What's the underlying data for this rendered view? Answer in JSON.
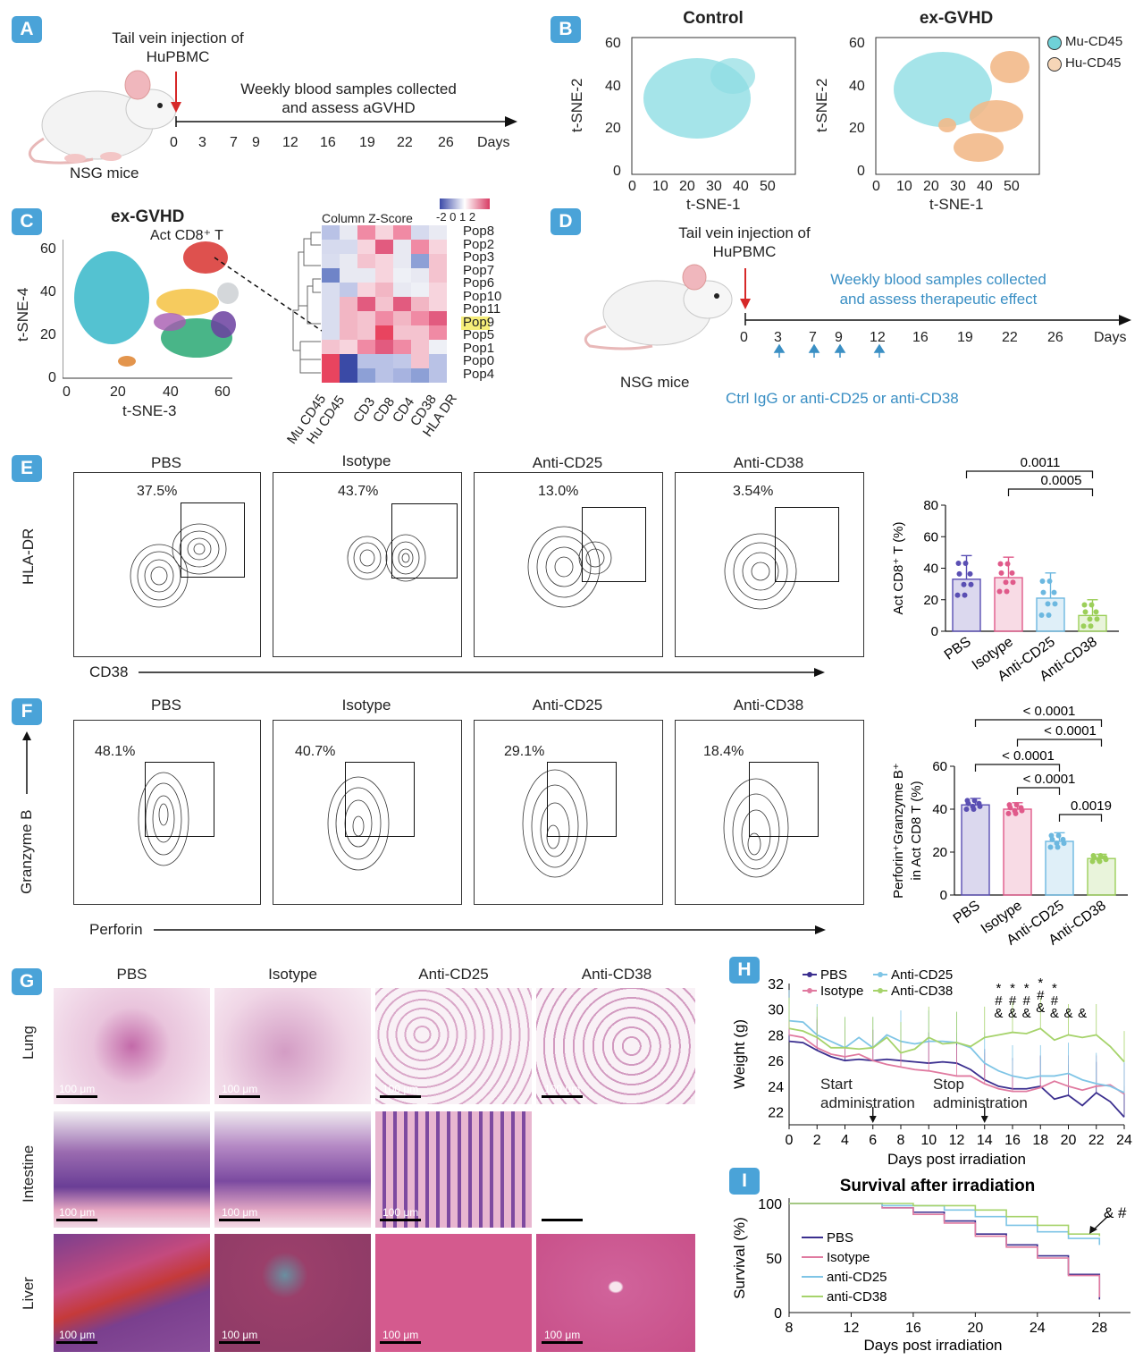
{
  "panels": {
    "a": {
      "label": "A",
      "injection": [
        "Tail vein injection of",
        "HuPBMC"
      ],
      "weekly": [
        "Weekly blood samples collected",
        "and assess aGVHD"
      ],
      "timeline_ticks": [
        "0",
        "3",
        "7",
        "9",
        "12",
        "16",
        "19",
        "22",
        "26"
      ],
      "days_label": "Days",
      "mouse_label": "NSG mice"
    },
    "b": {
      "label": "B",
      "titles": [
        "Control",
        "ex-GVHD"
      ],
      "xlabel": "t-SNE-1",
      "ylabel": "t-SNE-2",
      "xticks": [
        "0",
        "10",
        "20",
        "30",
        "40",
        "50"
      ],
      "yticks": [
        "0",
        "20",
        "40",
        "60"
      ],
      "legend": [
        {
          "name": "Mu-CD45",
          "color": "#6fd1d8"
        },
        {
          "name": "Hu-CD45",
          "color": "#f6d6b7"
        }
      ]
    },
    "c": {
      "label": "C",
      "title": "ex-GVHD",
      "annotation": "Act CD8⁺ T",
      "xlabel": "t-SNE-3",
      "ylabel": "t-SNE-4",
      "xticks": [
        "0",
        "20",
        "40",
        "60"
      ],
      "yticks": [
        "0",
        "20",
        "40",
        "60"
      ],
      "zscore_label": "Column Z-Score",
      "zscore_ticks": "-2  0 1 2",
      "rows": [
        "Pop8",
        "Pop2",
        "Pop3",
        "Pop7",
        "Pop6",
        "Pop10",
        "Pop11",
        "Pop9",
        "Pop5",
        "Pop1",
        "Pop0",
        "Pop4"
      ],
      "cols": [
        "Mu CD45",
        "Hu CD45",
        "CD3",
        "CD8",
        "CD4",
        "CD38",
        "HLA DR"
      ]
    },
    "d": {
      "label": "D",
      "injection": [
        "Tail vein injection of",
        "HuPBMC"
      ],
      "weekly": [
        "Weekly blood samples collected",
        "and assess therapeutic effect"
      ],
      "timeline_ticks": [
        "0",
        "3",
        "7",
        "9",
        "12",
        "16",
        "19",
        "22",
        "26"
      ],
      "days_label": "Days",
      "mouse_label": "NSG mice",
      "treatment": "Ctrl IgG or anti-CD25 or anti-CD38"
    },
    "e": {
      "label": "E",
      "groups": [
        "PBS",
        "Isotype",
        "Anti-CD25",
        "Anti-CD38"
      ],
      "percents": [
        "37.5%",
        "43.7%",
        "13.0%",
        "3.54%"
      ],
      "y_axis": "HLA-DR",
      "x_axis": "CD38",
      "bar_ylabel": "Act CD8⁺ T (%)",
      "p_values": [
        "0.0011",
        "0.0005"
      ]
    },
    "f": {
      "label": "F",
      "groups": [
        "PBS",
        "Isotype",
        "Anti-CD25",
        "Anti-CD38"
      ],
      "percents": [
        "48.1%",
        "40.7%",
        "29.1%",
        "18.4%"
      ],
      "y_axis": "Granzyme B",
      "x_axis": "Perforin",
      "bar_ylabel": [
        "Perforin⁺Granzyme B⁺",
        "in Act CD8 T (%)"
      ],
      "p_values": [
        "< 0.0001",
        "< 0.0001",
        "< 0.0001",
        "< 0.0001",
        "0.0019"
      ]
    },
    "g": {
      "label": "G",
      "columns": [
        "PBS",
        "Isotype",
        "Anti-CD25",
        "Anti-CD38"
      ],
      "rows": [
        "Lung",
        "Intestine",
        "Liver"
      ],
      "scalebar": "100 μm"
    },
    "h": {
      "label": "H",
      "legend": [
        "PBS",
        "Isotype",
        "Anti-CD25",
        "Anti-CD38"
      ],
      "xlabel": "Days post irradiation",
      "ylabel": "Weight (g)",
      "start": [
        "Start",
        "administration"
      ],
      "stop": [
        "Stop",
        "administration"
      ],
      "sig_marks": [
        "*",
        "#",
        "&"
      ]
    },
    "i": {
      "label": "I",
      "title": "Survival after irradiation",
      "legend": [
        "PBS",
        "Isotype",
        "anti-CD25",
        "anti-CD38"
      ],
      "xlabel": "Days post irradiation",
      "ylabel": "Survival (%)",
      "marker": "& #"
    }
  },
  "chart_data": [
    {
      "id": "E-bar",
      "type": "bar",
      "categories": [
        "PBS",
        "Isotype",
        "Anti-CD25",
        "Anti-CD38"
      ],
      "values": [
        33,
        34,
        21,
        10
      ],
      "errors": [
        15,
        13,
        16,
        10
      ],
      "colors": [
        "#5a4fb3",
        "#e05a8a",
        "#6cb8e0",
        "#9ccf5a"
      ],
      "ylabel": "Act CD8⁺ T (%)",
      "ylim": [
        0,
        80
      ],
      "yticks": [
        0,
        20,
        40,
        60,
        80
      ],
      "brackets": [
        {
          "from": "PBS",
          "to": "Anti-CD38",
          "label": "0.0011"
        },
        {
          "from": "Isotype",
          "to": "Anti-CD38",
          "label": "0.0005"
        }
      ]
    },
    {
      "id": "F-bar",
      "type": "bar",
      "categories": [
        "PBS",
        "Isotype",
        "Anti-CD25",
        "Anti-CD38"
      ],
      "values": [
        42,
        40,
        25,
        17
      ],
      "errors": [
        3,
        3,
        4,
        2
      ],
      "colors": [
        "#5a4fb3",
        "#e05a8a",
        "#6cb8e0",
        "#9ccf5a"
      ],
      "ylabel": "Perforin⁺Granzyme B⁺ in Act CD8 T (%)",
      "ylim": [
        0,
        60
      ],
      "yticks": [
        0,
        20,
        40,
        60
      ],
      "brackets": [
        {
          "from": "PBS",
          "to": "Anti-CD38",
          "label": "< 0.0001"
        },
        {
          "from": "Isotype",
          "to": "Anti-CD38",
          "label": "< 0.0001"
        },
        {
          "from": "PBS",
          "to": "Anti-CD25",
          "label": "< 0.0001"
        },
        {
          "from": "Isotype",
          "to": "Anti-CD25",
          "label": "< 0.0001"
        },
        {
          "from": "Anti-CD25",
          "to": "Anti-CD38",
          "label": "0.0019"
        }
      ]
    },
    {
      "id": "H-line",
      "type": "line",
      "title": "",
      "xlabel": "Days post irradiation",
      "ylabel": "Weight (g)",
      "x": [
        0,
        1,
        2,
        3,
        4,
        5,
        6,
        7,
        8,
        9,
        10,
        11,
        12,
        13,
        14,
        15,
        16,
        17,
        18,
        19,
        20,
        21,
        22,
        23,
        24
      ],
      "xlim": [
        0,
        24
      ],
      "ylim": [
        21,
        32
      ],
      "xticks": [
        0,
        2,
        4,
        6,
        8,
        10,
        12,
        14,
        16,
        18,
        20,
        22,
        24
      ],
      "yticks": [
        22,
        24,
        26,
        28,
        30,
        32
      ],
      "series": [
        {
          "name": "PBS",
          "color": "#3b2f8f",
          "values": [
            27.5,
            27.4,
            26.8,
            26.3,
            26.0,
            26.1,
            26.0,
            26.1,
            26.0,
            25.9,
            25.8,
            25.9,
            25.8,
            25.3,
            24.5,
            24.0,
            23.8,
            23.8,
            24.0,
            23.0,
            23.3,
            22.5,
            23.5,
            22.8,
            21.6
          ]
        },
        {
          "name": "Isotype",
          "color": "#e07aa0",
          "values": [
            28.0,
            27.8,
            27.0,
            26.5,
            26.3,
            26.5,
            26.0,
            25.7,
            25.5,
            25.3,
            25.2,
            25.0,
            24.8,
            24.8,
            24.2,
            23.8,
            23.6,
            23.6,
            23.9,
            24.4,
            24.0,
            23.7,
            24.0,
            24.1,
            23.4
          ]
        },
        {
          "name": "Anti-CD25",
          "color": "#7fc5e6",
          "values": [
            29.1,
            29.0,
            28.0,
            27.5,
            27.0,
            27.8,
            27.0,
            28.0,
            27.5,
            27.3,
            27.5,
            27.5,
            27.4,
            27.0,
            25.8,
            25.2,
            24.8,
            24.6,
            24.8,
            24.8,
            25.0,
            24.5,
            24.2,
            24.0,
            23.5
          ]
        },
        {
          "name": "Anti-CD38",
          "color": "#a6d36b",
          "values": [
            28.5,
            28.3,
            27.8,
            27.0,
            27.0,
            26.9,
            27.0,
            27.8,
            26.6,
            26.9,
            27.8,
            27.3,
            27.4,
            27.1,
            27.8,
            28.0,
            28.2,
            28.1,
            28.5,
            27.6,
            28.0,
            27.8,
            28.0,
            27.1,
            25.9
          ]
        }
      ]
    },
    {
      "id": "I-survival",
      "type": "line",
      "title": "Survival after irradiation",
      "xlabel": "Days post irradiation",
      "ylabel": "Survival (%)",
      "xlim": [
        8,
        30
      ],
      "ylim": [
        0,
        100
      ],
      "xticks": [
        8,
        12,
        16,
        20,
        24,
        28
      ],
      "yticks": [
        0,
        50,
        100
      ],
      "series": [
        {
          "name": "PBS",
          "color": "#3b2f8f",
          "x": [
            8,
            14,
            16,
            18,
            20,
            22,
            24,
            26,
            28
          ],
          "values": [
            100,
            96,
            92,
            84,
            72,
            62,
            52,
            35,
            12
          ]
        },
        {
          "name": "Isotype",
          "color": "#e07aa0",
          "x": [
            8,
            14,
            16,
            18,
            20,
            22,
            24,
            26,
            28
          ],
          "values": [
            100,
            96,
            90,
            82,
            70,
            60,
            50,
            34,
            14
          ]
        },
        {
          "name": "anti-CD25",
          "color": "#7fc5e6",
          "x": [
            8,
            14,
            18,
            20,
            22,
            24,
            26,
            28
          ],
          "values": [
            100,
            98,
            94,
            88,
            80,
            74,
            68,
            62
          ]
        },
        {
          "name": "anti-CD38",
          "color": "#a6d36b",
          "x": [
            8,
            16,
            20,
            22,
            24,
            26,
            28
          ],
          "values": [
            100,
            98,
            94,
            88,
            80,
            72,
            70
          ]
        }
      ]
    }
  ]
}
